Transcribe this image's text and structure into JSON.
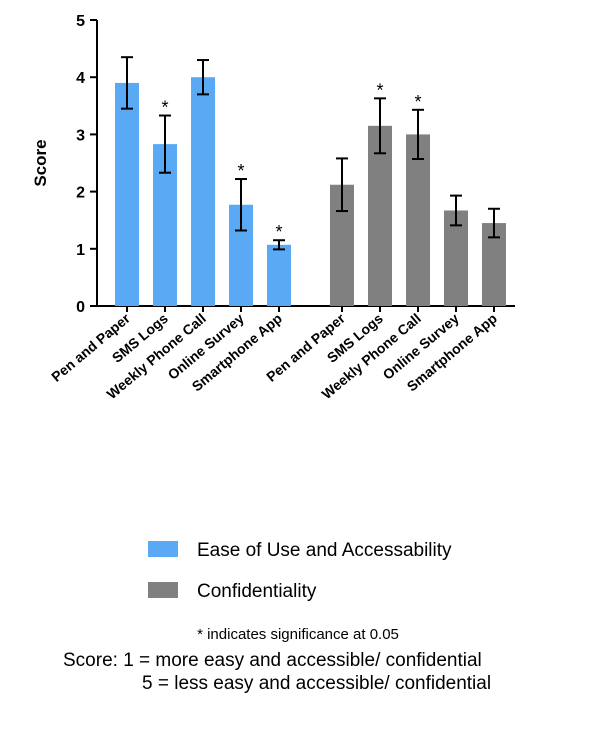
{
  "chart_data": {
    "type": "bar",
    "y_label": "Score",
    "categories": [
      "Pen and Paper",
      "SMS Logs",
      "Weekly Phone Call",
      "Online Survey",
      "Smartphone App"
    ],
    "series": [
      {
        "name": "Ease of Use and Accessability",
        "color": "#5aa9f4",
        "values": [
          3.9,
          2.83,
          4.0,
          1.77,
          1.07
        ],
        "errors": [
          0.45,
          0.5,
          0.3,
          0.45,
          0.08
        ],
        "significant": [
          false,
          true,
          false,
          true,
          true
        ]
      },
      {
        "name": "Confidentiality",
        "color": "#808080",
        "values": [
          2.12,
          3.15,
          3.0,
          1.67,
          1.45
        ],
        "errors": [
          0.46,
          0.48,
          0.43,
          0.26,
          0.25
        ],
        "significant": [
          false,
          true,
          true,
          false,
          false
        ]
      }
    ],
    "significance_mark": "*",
    "ylim": [
      0,
      5
    ],
    "yticks": [
      0,
      1,
      2,
      3,
      4,
      5
    ],
    "footnote": "* indicates significance at 0.05",
    "score_note": [
      "Score: 1 = more easy and accessible/ confidential",
      "5 = less easy and accessible/ confidential"
    ]
  }
}
